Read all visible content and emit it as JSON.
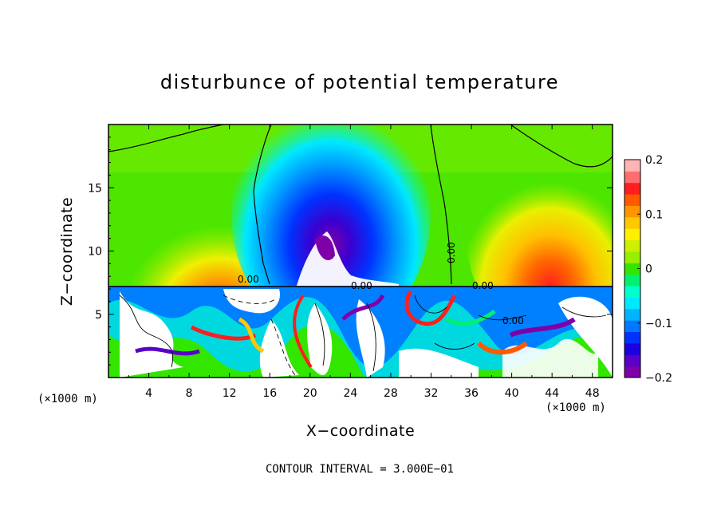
{
  "chart_data": {
    "type": "heatmap",
    "title": "disturbunce of potential temperature",
    "xlabel": "X−coordinate",
    "ylabel": "Z−coordinate",
    "x_unit": "(×1000 m)",
    "y_unit": "(×1000 m)",
    "xlim": [
      0,
      50
    ],
    "ylim": [
      0,
      20
    ],
    "x_ticks": [
      4,
      8,
      12,
      16,
      20,
      24,
      28,
      32,
      36,
      40,
      44,
      48
    ],
    "y_ticks": [
      5,
      10,
      15
    ],
    "colorbar": {
      "min": -0.2,
      "max": 0.2,
      "tick_values": [
        0.2,
        0.1,
        0,
        -0.1,
        -0.2
      ],
      "tick_labels": [
        "0.2",
        "0.1",
        "0",
        "−0.1",
        "−0.2"
      ],
      "colors": [
        "#7f00a8",
        "#5a00c8",
        "#1c00e0",
        "#0032ff",
        "#0078ff",
        "#00b4ff",
        "#00e8ff",
        "#00ffcc",
        "#00f070",
        "#33e600",
        "#99ee00",
        "#ccf000",
        "#fff000",
        "#ffc800",
        "#ff9600",
        "#ff5a00",
        "#ff1e1e",
        "#ff6e6e",
        "#ffb4b4"
      ]
    },
    "contour_labels": [
      "0.00",
      "0.00",
      "0.00",
      "0.00",
      "0.00"
    ],
    "footer": "CONTOUR INTERVAL = 3.000E−01",
    "field_features": [
      {
        "kind": "cold_anomaly",
        "x": 21.5,
        "z": 11,
        "value": -0.2
      },
      {
        "kind": "warm_anomaly",
        "x": 45,
        "z": 10,
        "value": 0.15
      },
      {
        "kind": "warm_anomaly",
        "x": 10,
        "z": 9,
        "value": 0.12
      },
      {
        "kind": "boundary_layer_top",
        "z": 7.2
      }
    ]
  }
}
